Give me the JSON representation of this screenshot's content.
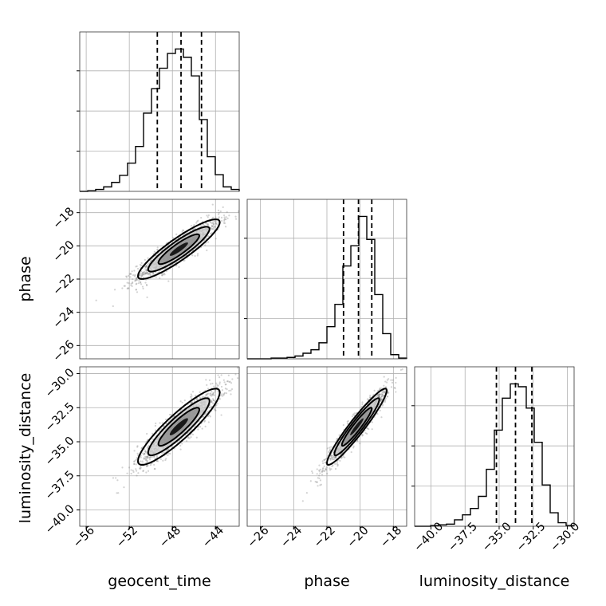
{
  "chart_data": {
    "type": "corner",
    "parameters": [
      "geocent_time",
      "phase",
      "luminosity_distance"
    ],
    "axis_labels": {
      "geocent_time": "geocent_time",
      "phase": "phase",
      "luminosity_distance": "luminosity_distance"
    },
    "ranges": {
      "geocent_time": [
        -56.6,
        -41.8
      ],
      "phase": [
        -26.8,
        -17.2
      ],
      "luminosity_distance": [
        -41.2,
        -29.5
      ]
    },
    "ticks": {
      "geocent_time": [
        -56,
        -52,
        -48,
        -44
      ],
      "phase": [
        -26,
        -24,
        -22,
        -20,
        -18
      ],
      "luminosity_distance": [
        -40.0,
        -37.5,
        -35.0,
        -32.5,
        -30.0
      ]
    },
    "tick_labels": {
      "geocent_time": [
        "−56",
        "−52",
        "−48",
        "−44"
      ],
      "phase": [
        "−26",
        "−24",
        "−22",
        "−20",
        "−18"
      ],
      "luminosity_distance": [
        "−40.0",
        "−37.5",
        "−35.0",
        "−32.5",
        "−30.0"
      ]
    },
    "quantiles": {
      "geocent_time": [
        -49.4,
        -47.2,
        -45.3
      ],
      "phase": [
        -21.0,
        -20.1,
        -19.3
      ],
      "luminosity_distance": [
        -35.2,
        -33.8,
        -32.6
      ]
    },
    "histograms": {
      "geocent_time": {
        "bin_edges": [
          -56.6,
          -55.86,
          -55.12,
          -54.38,
          -53.64,
          -52.9,
          -52.16,
          -51.42,
          -50.68,
          -49.94,
          -49.2,
          -48.46,
          -47.72,
          -46.98,
          -46.24,
          -45.5,
          -44.76,
          -44.02,
          -43.28,
          -42.54,
          -41.8
        ],
        "counts": [
          0,
          1,
          3,
          7,
          14,
          25,
          44,
          70,
          122,
          160,
          192,
          215,
          222,
          209,
          180,
          112,
          54,
          26,
          7,
          3
        ]
      },
      "phase": {
        "bin_edges": [
          -26.8,
          -26.32,
          -25.84,
          -25.36,
          -24.88,
          -24.4,
          -23.92,
          -23.44,
          -22.96,
          -22.48,
          -22.0,
          -21.52,
          -21.04,
          -20.56,
          -20.08,
          -19.6,
          -19.12,
          -18.64,
          -18.16,
          -17.68,
          -17.2
        ],
        "counts": [
          0,
          0,
          0,
          1,
          1,
          2,
          4,
          8,
          13,
          23,
          46,
          78,
          133,
          162,
          204,
          171,
          92,
          36,
          6,
          1
        ]
      },
      "luminosity_distance": {
        "bin_edges": [
          -41.2,
          -40.615,
          -40.03,
          -39.445,
          -38.86,
          -38.275,
          -37.69,
          -37.105,
          -36.52,
          -35.935,
          -35.35,
          -34.765,
          -34.18,
          -33.595,
          -33.01,
          -32.425,
          -31.84,
          -31.255,
          -30.67,
          -30.085,
          -29.5
        ],
        "counts": [
          0,
          0,
          1,
          2,
          3,
          9,
          16,
          25,
          42,
          80,
          135,
          180,
          200,
          196,
          166,
          118,
          58,
          19,
          5,
          1
        ]
      }
    },
    "pair_summaries": [
      {
        "x": "geocent_time",
        "y": "phase",
        "mean": [
          -47.4,
          -20.2
        ],
        "sd": [
          1.9,
          0.9
        ],
        "corr": 0.9
      },
      {
        "x": "geocent_time",
        "y": "luminosity_distance",
        "mean": [
          -47.4,
          -33.9
        ],
        "sd": [
          1.9,
          1.4
        ],
        "corr": 0.9
      },
      {
        "x": "phase",
        "y": "luminosity_distance",
        "mean": [
          -20.2,
          -33.9
        ],
        "sd": [
          0.9,
          1.4
        ],
        "corr": 0.95
      }
    ],
    "grid": true,
    "colors": {
      "line": "#000000",
      "points": "#808080",
      "grid": "#b0b0b0"
    }
  }
}
